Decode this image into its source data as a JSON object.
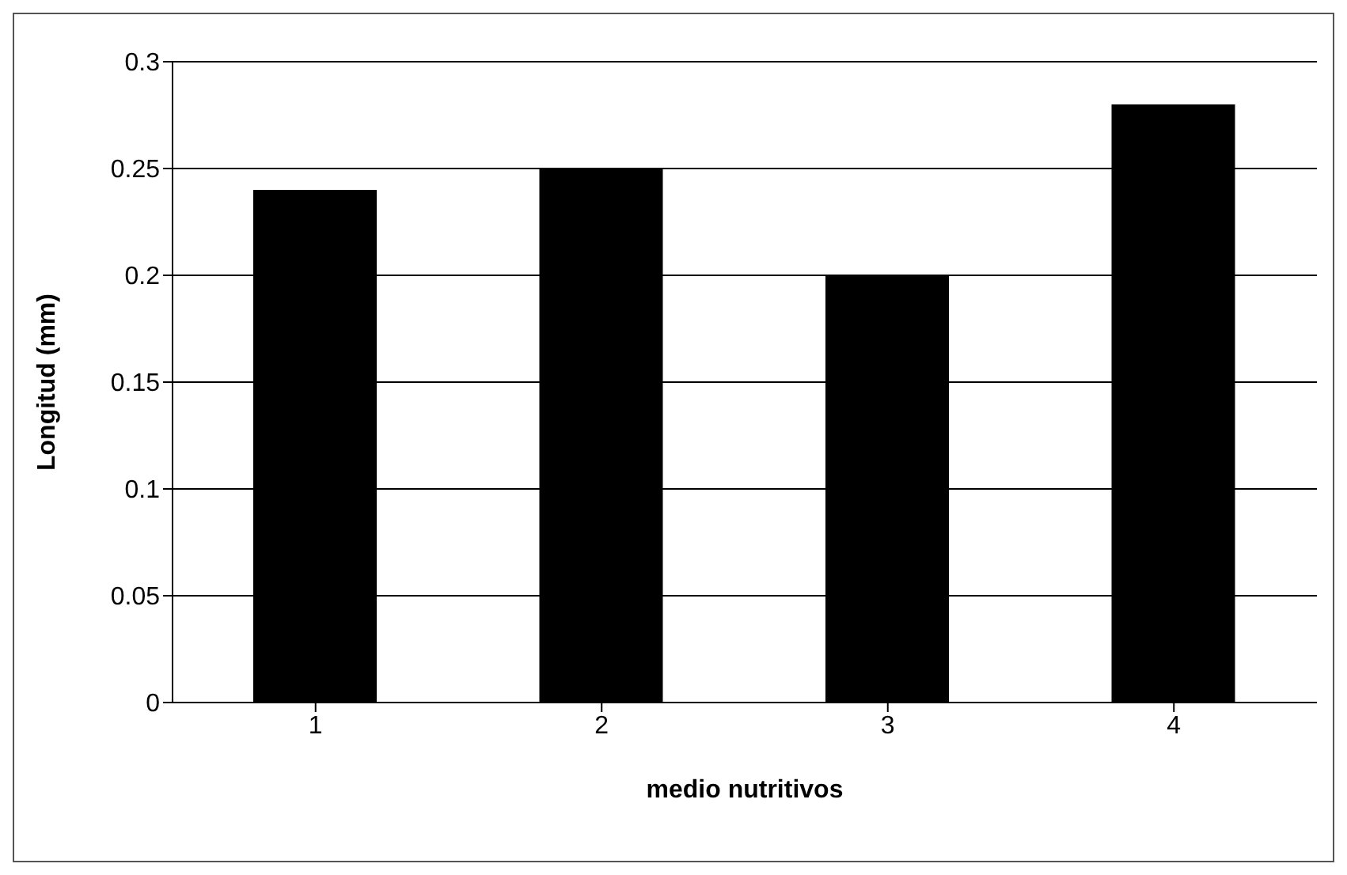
{
  "chart_data": {
    "type": "bar",
    "xlabel": "medio nutritivos",
    "ylabel": "Longitud (mm)",
    "categories": [
      "1",
      "2",
      "3",
      "4"
    ],
    "values": [
      0.24,
      0.25,
      0.2,
      0.28
    ],
    "color": "#000000",
    "ylim": [
      0,
      0.3
    ],
    "yticks": [
      0,
      0.05,
      0.1,
      0.15,
      0.2,
      0.25,
      0.3
    ],
    "grid": "y"
  }
}
